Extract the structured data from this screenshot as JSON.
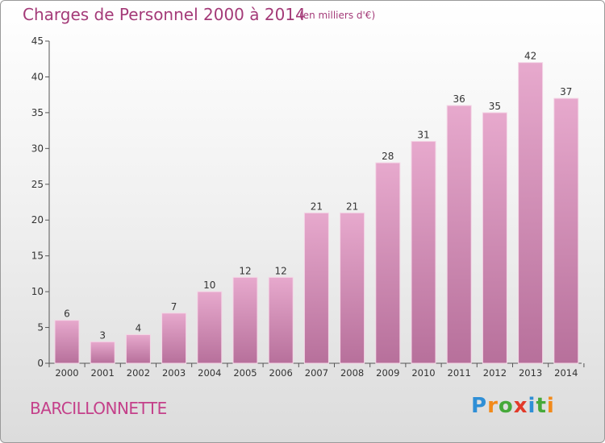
{
  "title": "Charges de Personnel 2000 à 2014",
  "subtitle": "(en milliers d'€)",
  "commune": "BARCILLONNETTE",
  "logo": {
    "letters": [
      "P",
      "r",
      "o",
      "x",
      "i",
      "t",
      "i"
    ],
    "colors": [
      "#2f8fd6",
      "#f28a1a",
      "#46a93a",
      "#e23a2a",
      "#2f8fd6",
      "#46a93a",
      "#f28a1a"
    ]
  },
  "colors": {
    "bar_top": "#e7a9cd",
    "bar_bottom": "#b7709b",
    "title": "#a43a78"
  },
  "chart_data": {
    "type": "bar",
    "categories": [
      "2000",
      "2001",
      "2002",
      "2003",
      "2004",
      "2005",
      "2006",
      "2007",
      "2008",
      "2009",
      "2010",
      "2011",
      "2012",
      "2013",
      "2014"
    ],
    "values": [
      6,
      3,
      4,
      7,
      10,
      12,
      12,
      21,
      21,
      28,
      31,
      36,
      35,
      42,
      37
    ],
    "ylim": [
      0,
      45
    ],
    "yticks": [
      0,
      5,
      10,
      15,
      20,
      25,
      30,
      35,
      40,
      45
    ],
    "data_labels": true,
    "grid": false
  }
}
